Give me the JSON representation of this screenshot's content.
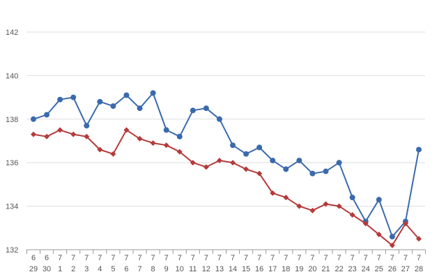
{
  "chart_data": {
    "type": "line",
    "title": "",
    "xlabel": "",
    "ylabel": "",
    "ylim": [
      132,
      142
    ],
    "yticks": [
      132,
      134,
      136,
      138,
      140,
      142
    ],
    "grid": true,
    "categories": [
      {
        "month": "6",
        "day": "29"
      },
      {
        "month": "6",
        "day": "30"
      },
      {
        "month": "7",
        "day": "1"
      },
      {
        "month": "7",
        "day": "2"
      },
      {
        "month": "7",
        "day": "3"
      },
      {
        "month": "7",
        "day": "4"
      },
      {
        "month": "7",
        "day": "5"
      },
      {
        "month": "7",
        "day": "6"
      },
      {
        "month": "7",
        "day": "7"
      },
      {
        "month": "7",
        "day": "8"
      },
      {
        "month": "7",
        "day": "9"
      },
      {
        "month": "7",
        "day": "10"
      },
      {
        "month": "7",
        "day": "11"
      },
      {
        "month": "7",
        "day": "12"
      },
      {
        "month": "7",
        "day": "13"
      },
      {
        "month": "7",
        "day": "14"
      },
      {
        "month": "7",
        "day": "15"
      },
      {
        "month": "7",
        "day": "16"
      },
      {
        "month": "7",
        "day": "17"
      },
      {
        "month": "7",
        "day": "18"
      },
      {
        "month": "7",
        "day": "19"
      },
      {
        "month": "7",
        "day": "20"
      },
      {
        "month": "7",
        "day": "21"
      },
      {
        "month": "7",
        "day": "22"
      },
      {
        "month": "7",
        "day": "23"
      },
      {
        "month": "7",
        "day": "24"
      },
      {
        "month": "7",
        "day": "25"
      },
      {
        "month": "7",
        "day": "26"
      },
      {
        "month": "7",
        "day": "27"
      },
      {
        "month": "7",
        "day": "28"
      }
    ],
    "series": [
      {
        "color": "#3a6aad",
        "marker": "circle",
        "values": [
          138.0,
          138.2,
          138.9,
          139.0,
          137.7,
          138.8,
          138.6,
          139.1,
          138.5,
          139.2,
          137.5,
          137.2,
          138.4,
          138.5,
          138.0,
          136.8,
          136.4,
          136.7,
          136.1,
          135.7,
          136.1,
          135.5,
          135.6,
          136.0,
          134.4,
          133.3,
          134.3,
          132.6,
          133.3,
          136.6
        ]
      },
      {
        "color": "#b53a3a",
        "marker": "diamond",
        "values": [
          137.3,
          137.2,
          137.5,
          137.3,
          137.2,
          136.6,
          136.4,
          137.5,
          137.1,
          136.9,
          136.8,
          136.5,
          136.0,
          135.8,
          136.1,
          136.0,
          135.7,
          135.5,
          134.6,
          134.4,
          134.0,
          133.8,
          134.1,
          134.0,
          133.6,
          133.2,
          132.7,
          132.2,
          133.2,
          132.5
        ]
      }
    ],
    "colors": {
      "grid": "#dddddd",
      "axis": "#999999",
      "label": "#555555"
    }
  }
}
